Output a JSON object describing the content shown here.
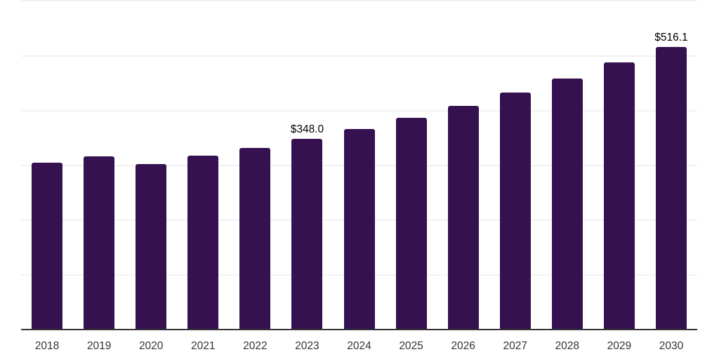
{
  "chart_data": {
    "type": "bar",
    "title": "",
    "xlabel": "",
    "ylabel": "",
    "categories": [
      "2018",
      "2019",
      "2020",
      "2021",
      "2022",
      "2023",
      "2024",
      "2025",
      "2026",
      "2027",
      "2028",
      "2029",
      "2030"
    ],
    "values": [
      304.8,
      316.3,
      302.3,
      317.2,
      332.1,
      348.0,
      366.5,
      386.4,
      408.9,
      432.4,
      458.1,
      487.6,
      516.1
    ],
    "data_labels": [
      "",
      "",
      "",
      "",
      "",
      "$348.0",
      "",
      "",
      "",
      "",
      "",
      "",
      "$516.1"
    ],
    "ylim": [
      0,
      603
    ],
    "gridline_step": 100,
    "grid": "horizontal",
    "legend": "none",
    "y_axis_tick_labels": "none",
    "bar_color": "#36114F",
    "axis_color": "#333333",
    "gridline_color": "#F2F2F4",
    "tick_label_color": "#333333",
    "value_label_color": "#000000",
    "background_color": "#FFFFFF"
  }
}
